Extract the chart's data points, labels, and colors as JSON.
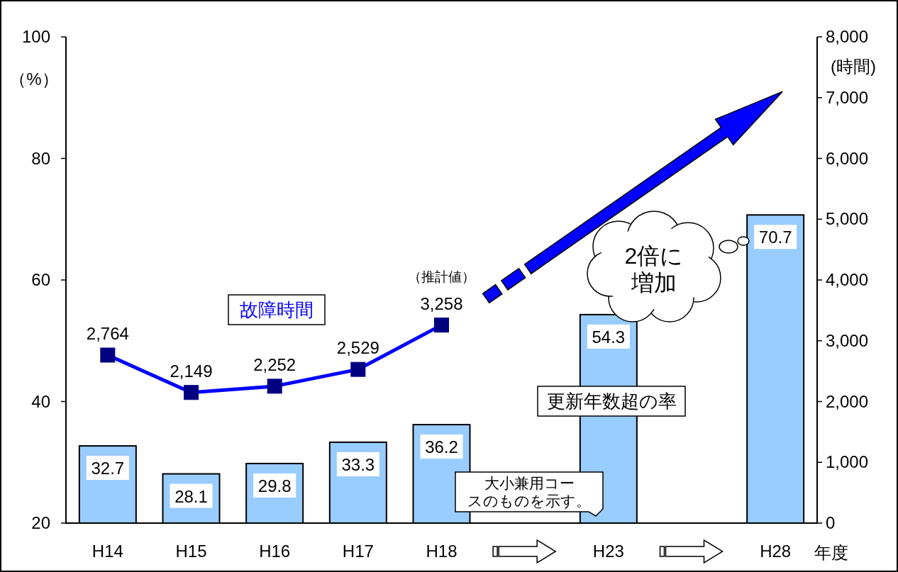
{
  "chart_data": {
    "type": "bar",
    "categories": [
      "H14",
      "H15",
      "H16",
      "H17",
      "H18",
      null,
      "H23",
      null,
      "H28"
    ],
    "series": [
      {
        "name": "更新年数超の率",
        "color": "#99ccff",
        "values": [
          32.7,
          28.1,
          29.8,
          33.3,
          36.2,
          null,
          54.3,
          null,
          70.7
        ]
      },
      {
        "name": "故障時間",
        "type": "line",
        "axis": "y2",
        "color": "#0000ff",
        "values": [
          2764,
          2149,
          2252,
          2529,
          3258,
          null,
          null,
          null,
          null
        ],
        "value_labels": [
          "2,764",
          "2,149",
          "2,252",
          "2,529",
          "3,258",
          null,
          null,
          null,
          null
        ]
      }
    ],
    "ylim": [
      20,
      100
    ],
    "yticks": [
      20,
      40,
      60,
      80,
      100
    ],
    "y2lim": [
      0,
      8000
    ],
    "y2ticks": [
      {
        "value": 0,
        "label": "0"
      },
      {
        "value": 1000,
        "label": "1,000"
      },
      {
        "value": 2000,
        "label": "2,000"
      },
      {
        "value": 3000,
        "label": "3,000"
      },
      {
        "value": 4000,
        "label": "4,000"
      },
      {
        "value": 5000,
        "label": "5,000"
      },
      {
        "value": 6000,
        "label": "6,000"
      },
      {
        "value": 7000,
        "label": "7,000"
      },
      {
        "value": 8000,
        "label": "8,000"
      }
    ],
    "ylabel": "（%）",
    "y2label": "(時間)",
    "xlabel": "年度",
    "marker": "square",
    "data_labels": true,
    "annotations": [
      "（推計値）",
      "2倍に増加",
      "大小兼用コースのものを示す。"
    ]
  }
}
